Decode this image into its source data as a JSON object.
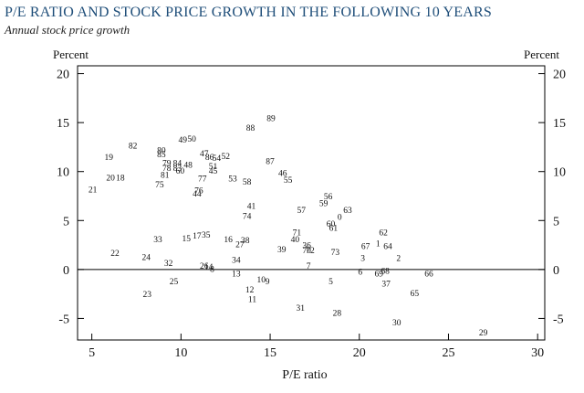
{
  "chart_data": {
    "type": "scatter",
    "title": "P/E RATIO AND STOCK PRICE GROWTH IN THE FOLLOWING 10 YEARS",
    "subtitle": "Annual stock price growth",
    "xlabel": "P/E ratio",
    "ylabel_left": "Percent",
    "ylabel_right": "Percent",
    "xlim": [
      4.2,
      30.4
    ],
    "ylim": [
      -7.2,
      20.8
    ],
    "xticks": [
      5,
      10,
      15,
      20,
      25,
      30
    ],
    "yticks": [
      -5,
      0,
      5,
      10,
      15,
      20
    ],
    "ytick_labels": [
      "-5",
      "0",
      "5",
      "10",
      "15",
      "20"
    ],
    "zero_line": true,
    "points": [
      {
        "label": "89",
        "x": 15.05,
        "y": 15.5
      },
      {
        "label": "88",
        "x": 13.9,
        "y": 14.5
      },
      {
        "label": "49",
        "x": 10.1,
        "y": 13.3
      },
      {
        "label": "50",
        "x": 10.6,
        "y": 13.4
      },
      {
        "label": "82",
        "x": 7.3,
        "y": 12.7
      },
      {
        "label": "80",
        "x": 8.9,
        "y": 12.2
      },
      {
        "label": "85",
        "x": 8.9,
        "y": 11.8
      },
      {
        "label": "47",
        "x": 11.3,
        "y": 11.9
      },
      {
        "label": "86",
        "x": 11.6,
        "y": 11.5
      },
      {
        "label": "54",
        "x": 12.0,
        "y": 11.4
      },
      {
        "label": "52",
        "x": 12.5,
        "y": 11.6
      },
      {
        "label": "19",
        "x": 5.95,
        "y": 11.5
      },
      {
        "label": "87",
        "x": 15.0,
        "y": 11.1
      },
      {
        "label": "79",
        "x": 9.2,
        "y": 10.9
      },
      {
        "label": "84",
        "x": 9.8,
        "y": 10.9
      },
      {
        "label": "48",
        "x": 10.4,
        "y": 10.7
      },
      {
        "label": "78",
        "x": 9.2,
        "y": 10.4
      },
      {
        "label": "83",
        "x": 9.8,
        "y": 10.4
      },
      {
        "label": "51",
        "x": 11.8,
        "y": 10.6
      },
      {
        "label": "60",
        "x": 9.95,
        "y": 10.1
      },
      {
        "label": "45",
        "x": 11.8,
        "y": 10.1
      },
      {
        "label": "46",
        "x": 15.7,
        "y": 9.9
      },
      {
        "label": "81",
        "x": 9.1,
        "y": 9.7
      },
      {
        "label": "20",
        "x": 6.05,
        "y": 9.4
      },
      {
        "label": "18",
        "x": 6.6,
        "y": 9.4
      },
      {
        "label": "77",
        "x": 11.2,
        "y": 9.3
      },
      {
        "label": "53",
        "x": 12.9,
        "y": 9.3
      },
      {
        "label": "58",
        "x": 13.7,
        "y": 9.0
      },
      {
        "label": "55",
        "x": 16.0,
        "y": 9.2
      },
      {
        "label": "75",
        "x": 8.8,
        "y": 8.7
      },
      {
        "label": "21",
        "x": 5.05,
        "y": 8.2
      },
      {
        "label": "76",
        "x": 11.0,
        "y": 8.1
      },
      {
        "label": "44",
        "x": 10.9,
        "y": 7.8
      },
      {
        "label": "56",
        "x": 18.25,
        "y": 7.5
      },
      {
        "label": "41",
        "x": 13.95,
        "y": 6.5
      },
      {
        "label": "59",
        "x": 18.0,
        "y": 6.8
      },
      {
        "label": "57",
        "x": 16.75,
        "y": 6.1
      },
      {
        "label": "63",
        "x": 19.35,
        "y": 6.1
      },
      {
        "label": "74",
        "x": 13.7,
        "y": 5.5
      },
      {
        "label": "0",
        "x": 18.9,
        "y": 5.4
      },
      {
        "label": "60",
        "x": 18.4,
        "y": 4.7
      },
      {
        "label": "61",
        "x": 18.55,
        "y": 4.3
      },
      {
        "label": "62",
        "x": 21.35,
        "y": 3.8
      },
      {
        "label": "71",
        "x": 16.5,
        "y": 3.8
      },
      {
        "label": "35",
        "x": 11.4,
        "y": 3.6
      },
      {
        "label": "17",
        "x": 10.9,
        "y": 3.5
      },
      {
        "label": "15",
        "x": 10.3,
        "y": 3.2
      },
      {
        "label": "33",
        "x": 8.7,
        "y": 3.1
      },
      {
        "label": "16",
        "x": 12.65,
        "y": 3.1
      },
      {
        "label": "38",
        "x": 13.6,
        "y": 3.0
      },
      {
        "label": "40",
        "x": 16.4,
        "y": 3.1
      },
      {
        "label": "27",
        "x": 13.3,
        "y": 2.6
      },
      {
        "label": "1",
        "x": 21.05,
        "y": 2.7
      },
      {
        "label": "67",
        "x": 20.35,
        "y": 2.4
      },
      {
        "label": "64",
        "x": 21.6,
        "y": 2.4
      },
      {
        "label": "36",
        "x": 17.05,
        "y": 2.5
      },
      {
        "label": "39",
        "x": 15.65,
        "y": 2.1
      },
      {
        "label": "70",
        "x": 17.05,
        "y": 2.0
      },
      {
        "label": "72",
        "x": 17.25,
        "y": 2.0
      },
      {
        "label": "73",
        "x": 18.65,
        "y": 1.8
      },
      {
        "label": "22",
        "x": 6.3,
        "y": 1.7
      },
      {
        "label": "24",
        "x": 8.05,
        "y": 1.3
      },
      {
        "label": "3",
        "x": 20.2,
        "y": 1.2
      },
      {
        "label": "2",
        "x": 22.2,
        "y": 1.2
      },
      {
        "label": "34",
        "x": 13.1,
        "y": 1.0
      },
      {
        "label": "32",
        "x": 9.3,
        "y": 0.7
      },
      {
        "label": "26",
        "x": 11.3,
        "y": 0.4
      },
      {
        "label": "14",
        "x": 11.55,
        "y": 0.3
      },
      {
        "label": "8",
        "x": 11.75,
        "y": 0.1
      },
      {
        "label": "7",
        "x": 17.15,
        "y": 0.4
      },
      {
        "label": "13",
        "x": 13.1,
        "y": -0.4
      },
      {
        "label": "68",
        "x": 21.45,
        "y": -0.1
      },
      {
        "label": "6",
        "x": 20.05,
        "y": -0.2
      },
      {
        "label": "69",
        "x": 21.1,
        "y": -0.4
      },
      {
        "label": "66",
        "x": 23.9,
        "y": -0.4
      },
      {
        "label": "10",
        "x": 14.5,
        "y": -1.0
      },
      {
        "label": "9",
        "x": 14.85,
        "y": -1.2
      },
      {
        "label": "25",
        "x": 9.6,
        "y": -1.2
      },
      {
        "label": "5",
        "x": 18.4,
        "y": -1.2
      },
      {
        "label": "37",
        "x": 21.5,
        "y": -1.4
      },
      {
        "label": "12",
        "x": 13.85,
        "y": -2.0
      },
      {
        "label": "23",
        "x": 8.1,
        "y": -2.5
      },
      {
        "label": "65",
        "x": 23.1,
        "y": -2.4
      },
      {
        "label": "11",
        "x": 14.0,
        "y": -3.0
      },
      {
        "label": "31",
        "x": 16.7,
        "y": -3.9
      },
      {
        "label": "28",
        "x": 18.75,
        "y": -4.4
      },
      {
        "label": "30",
        "x": 22.1,
        "y": -5.4
      },
      {
        "label": "29",
        "x": 26.95,
        "y": -6.4
      }
    ]
  }
}
